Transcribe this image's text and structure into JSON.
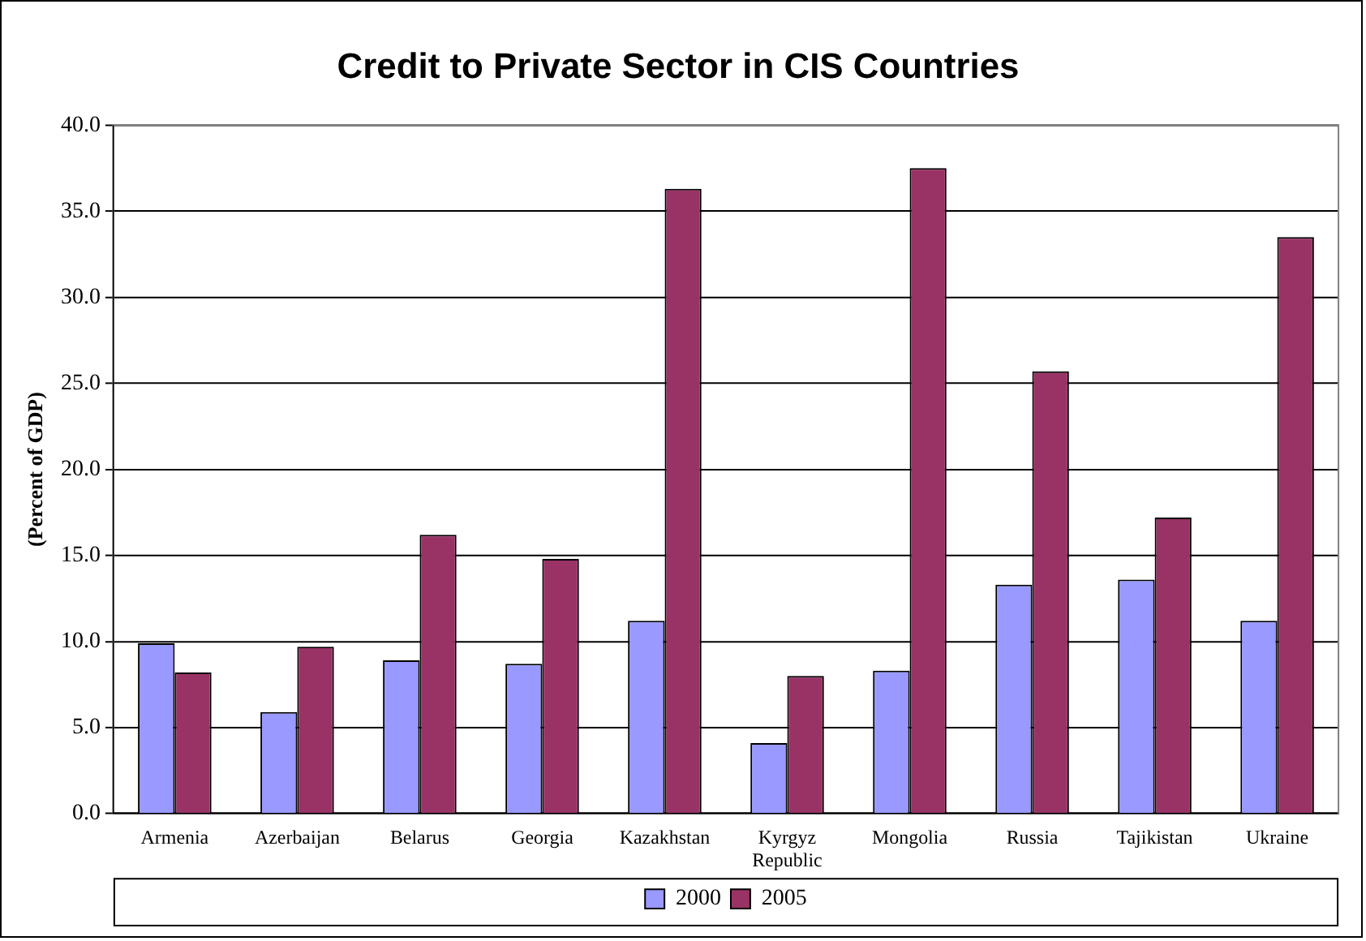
{
  "chart_data": {
    "type": "bar",
    "title": "Credit to Private Sector in CIS Countries",
    "ylabel": "(Percent of GDP)",
    "categories": [
      "Armenia",
      "Azerbaijan",
      "Belarus",
      "Georgia",
      "Kazakhstan",
      "Kyrgyz Republic",
      "Mongolia",
      "Russia",
      "Tajikistan",
      "Ukraine"
    ],
    "series": [
      {
        "name": "2000",
        "color": "#9999ff",
        "values": [
          9.9,
          5.9,
          8.9,
          8.7,
          11.2,
          4.1,
          8.3,
          13.3,
          13.6,
          11.2
        ]
      },
      {
        "name": "2005",
        "color": "#993366",
        "values": [
          8.2,
          9.7,
          16.2,
          14.8,
          36.3,
          8.0,
          37.5,
          25.7,
          17.2,
          33.5
        ]
      }
    ],
    "ylim": [
      0,
      40
    ],
    "yticks": [
      {
        "value": 0,
        "label": "0.0"
      },
      {
        "value": 5,
        "label": "5.0"
      },
      {
        "value": 10,
        "label": "10.0"
      },
      {
        "value": 15,
        "label": "15.0"
      },
      {
        "value": 20,
        "label": "20.0"
      },
      {
        "value": 25,
        "label": "25.0"
      },
      {
        "value": 30,
        "label": "30.0"
      },
      {
        "value": 35,
        "label": "35.0"
      },
      {
        "value": 40,
        "label": "40.0"
      }
    ],
    "grid": "y",
    "legend": "bottom"
  }
}
